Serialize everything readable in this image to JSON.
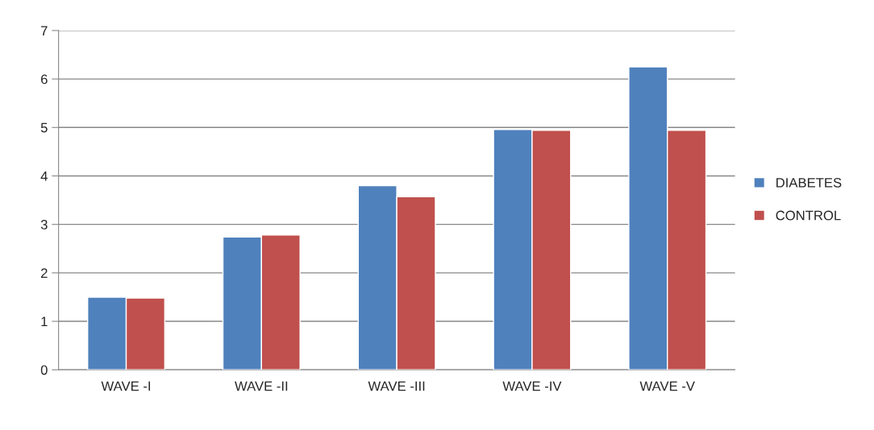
{
  "chart_data": {
    "type": "bar",
    "categories": [
      "WAVE -I",
      "WAVE -II",
      "WAVE -III",
      "WAVE -IV",
      "WAVE -V"
    ],
    "series": [
      {
        "name": "DIABETES",
        "color": "#4f81bd",
        "values": [
          1.5,
          2.74,
          3.8,
          4.96,
          6.25
        ]
      },
      {
        "name": "CONTROL",
        "color": "#c0504d",
        "values": [
          1.48,
          2.78,
          3.57,
          4.94,
          4.94
        ]
      }
    ],
    "ylim": [
      0,
      7
    ],
    "yticks": [
      0,
      1,
      2,
      3,
      4,
      5,
      6,
      7
    ],
    "grid": "y",
    "legend": "right"
  }
}
